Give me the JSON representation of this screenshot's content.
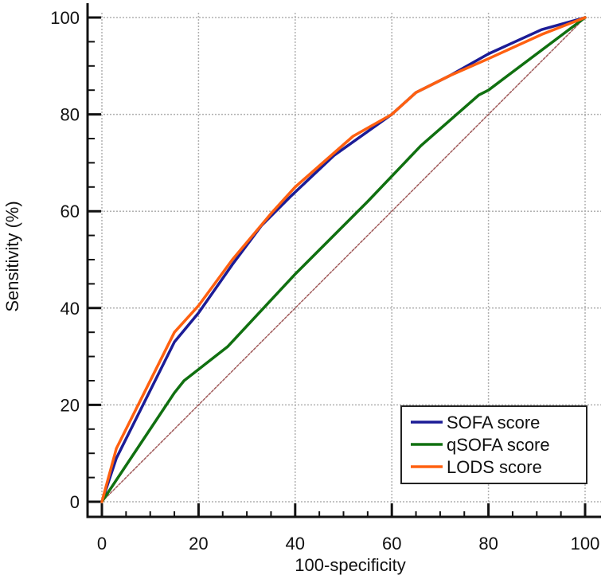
{
  "chart_data": {
    "type": "line",
    "title": "",
    "xlabel": "100-specificity",
    "ylabel": "Sensitivity (%)",
    "xlim": [
      0,
      100
    ],
    "ylim": [
      0,
      100
    ],
    "x_ticks": [
      0,
      20,
      40,
      60,
      80,
      100
    ],
    "y_ticks": [
      0,
      20,
      40,
      60,
      80,
      100
    ],
    "minor_tick_step": 5,
    "grid": true,
    "legend_position": "lower right",
    "series": [
      {
        "name": "SOFA score",
        "color": "#1c1c96",
        "points": [
          [
            0,
            0
          ],
          [
            3,
            9
          ],
          [
            8,
            19
          ],
          [
            15,
            33
          ],
          [
            20,
            39
          ],
          [
            27,
            49
          ],
          [
            33,
            57
          ],
          [
            39,
            63
          ],
          [
            48,
            71.5
          ],
          [
            60,
            80
          ],
          [
            65,
            84.5
          ],
          [
            72,
            88
          ],
          [
            80,
            92.5
          ],
          [
            91,
            97.5
          ],
          [
            100,
            100
          ]
        ]
      },
      {
        "name": "qSOFA score",
        "color": "#107010",
        "points": [
          [
            0,
            0
          ],
          [
            8,
            12
          ],
          [
            15,
            22.5
          ],
          [
            17,
            25
          ],
          [
            26,
            32
          ],
          [
            40,
            47
          ],
          [
            55,
            62
          ],
          [
            66,
            73.5
          ],
          [
            78,
            84
          ],
          [
            80,
            85
          ],
          [
            100,
            100
          ]
        ]
      },
      {
        "name": "LODS score",
        "color": "#ff6010",
        "points": [
          [
            0,
            0
          ],
          [
            3,
            11
          ],
          [
            8,
            21
          ],
          [
            15,
            35
          ],
          [
            20,
            40.5
          ],
          [
            27,
            50
          ],
          [
            35,
            59.5
          ],
          [
            40,
            65
          ],
          [
            52,
            75.5
          ],
          [
            60,
            80
          ],
          [
            65,
            84.5
          ],
          [
            72,
            88
          ],
          [
            80,
            91.5
          ],
          [
            91,
            96.5
          ],
          [
            100,
            100
          ]
        ]
      },
      {
        "name": "reference",
        "color": "#a05a5a",
        "dashed": true,
        "points": [
          [
            0,
            0
          ],
          [
            100,
            100
          ]
        ]
      }
    ],
    "legend": [
      "SOFA score",
      "qSOFA score",
      "LODS score"
    ]
  }
}
